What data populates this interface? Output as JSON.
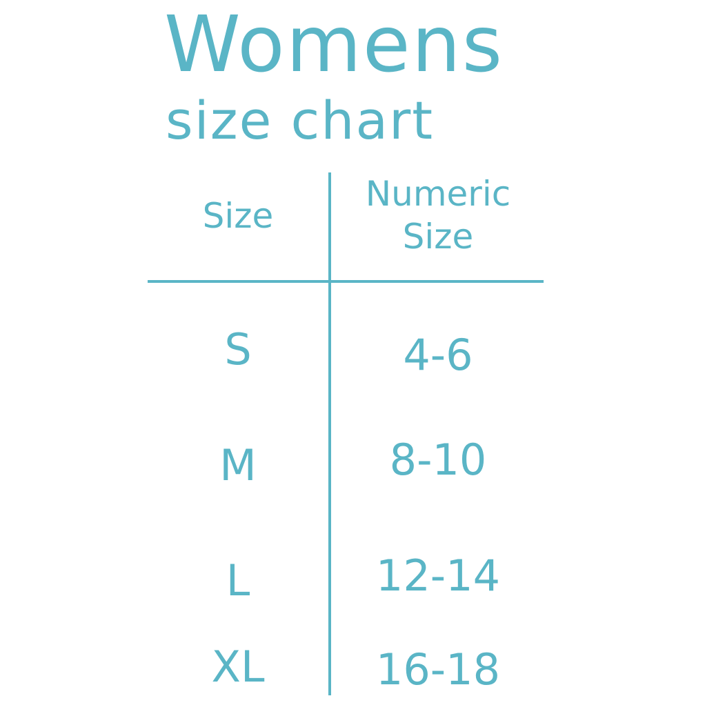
{
  "title": {
    "line1": "Womens",
    "line2": "size chart"
  },
  "colors": {
    "accent": "#5AB5C6",
    "background": "#FFFFFF"
  },
  "table": {
    "headers": [
      "Size",
      "Numeric Size"
    ],
    "rows": [
      [
        "S",
        "4-6"
      ],
      [
        "M",
        "8-10"
      ],
      [
        "L",
        "12-14"
      ],
      [
        "XL",
        "16-18"
      ]
    ]
  }
}
